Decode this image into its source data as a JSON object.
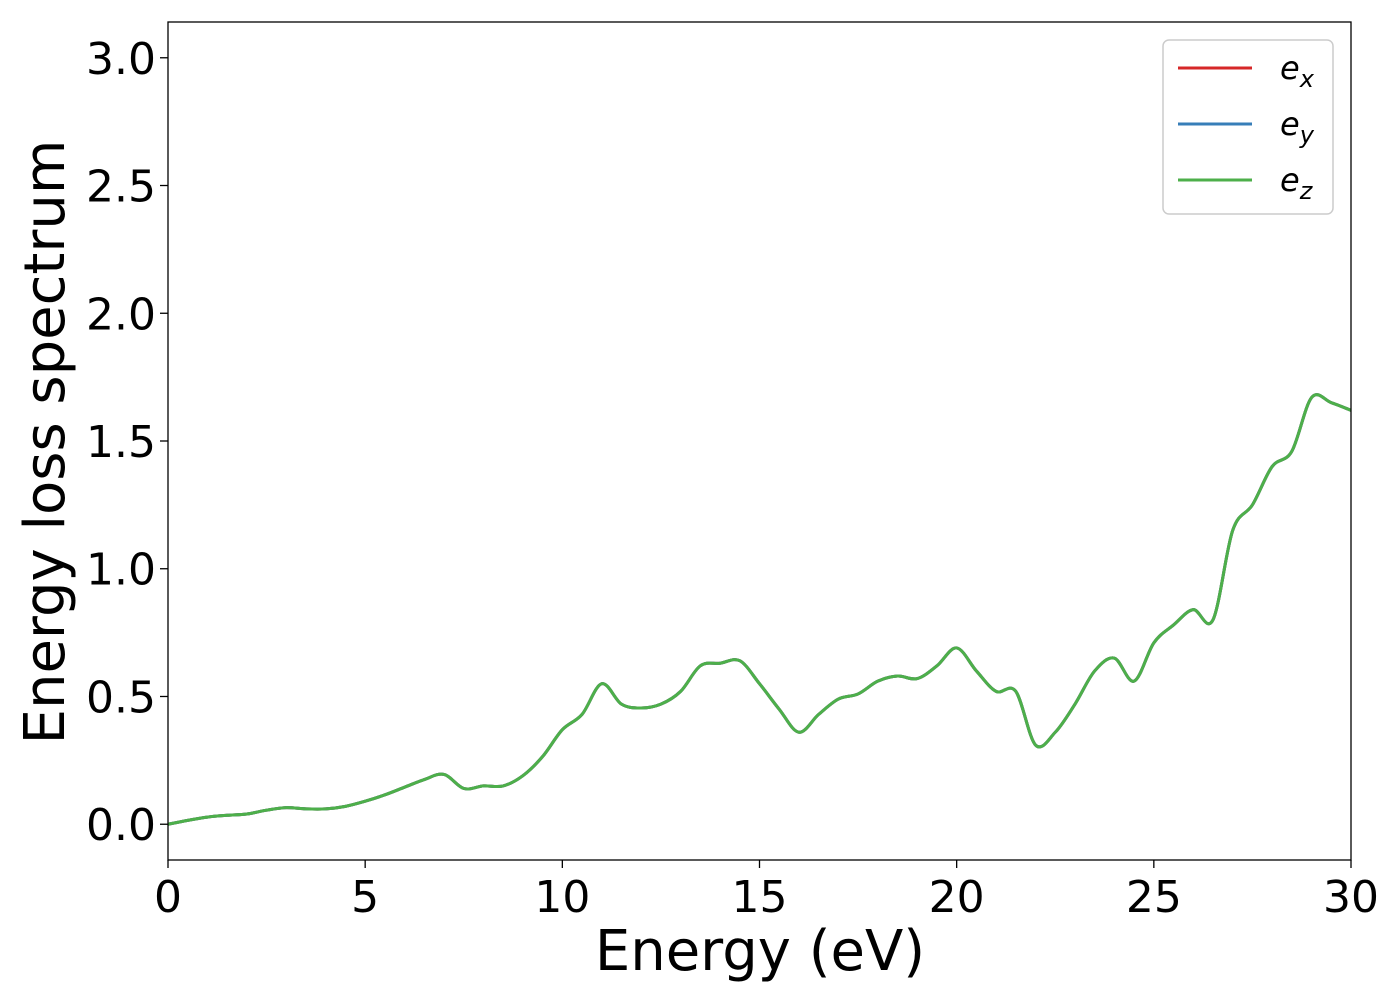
{
  "chart_data": {
    "type": "line",
    "xlabel": "Energy (eV)",
    "ylabel": "Energy loss spectrum",
    "xlim": [
      0,
      30
    ],
    "ylim": [
      -0.14,
      3.14
    ],
    "xticks": [
      "0",
      "5",
      "10",
      "15",
      "20",
      "25",
      "30"
    ],
    "yticks": [
      "0.0",
      "0.5",
      "1.0",
      "1.5",
      "2.0",
      "2.5",
      "3.0"
    ],
    "grid": false,
    "legend_position": "top-right",
    "series": [
      {
        "name": "e",
        "subscript": "x",
        "color": "#d62728",
        "x": [
          0,
          0.5,
          1,
          1.5,
          2,
          2.5,
          3,
          3.5,
          4,
          4.5,
          5,
          5.5,
          6,
          6.5,
          7,
          7.5,
          8,
          8.5,
          9,
          9.5,
          10,
          10.5,
          11,
          11.5,
          12,
          12.5,
          13,
          13.5,
          14,
          14.5,
          15,
          15.5,
          16,
          16.5,
          17,
          17.5,
          18,
          18.5,
          19,
          19.5,
          20,
          20.5,
          21,
          21.5,
          22,
          22.5,
          23,
          23.5,
          24,
          24.5,
          25,
          25.5,
          26,
          26.5,
          27,
          27.5,
          28,
          28.5,
          29,
          29.5,
          30
        ],
        "y": [
          0.0,
          0.015,
          0.028,
          0.035,
          0.04,
          0.055,
          0.065,
          0.06,
          0.06,
          0.07,
          0.09,
          0.115,
          0.145,
          0.175,
          0.195,
          0.14,
          0.15,
          0.15,
          0.19,
          0.265,
          0.37,
          0.43,
          0.55,
          0.47,
          0.455,
          0.47,
          0.52,
          0.62,
          0.63,
          0.64,
          0.55,
          0.45,
          0.36,
          0.43,
          0.49,
          0.51,
          0.56,
          0.58,
          0.57,
          0.62,
          0.69,
          0.6,
          0.52,
          0.52,
          0.31,
          0.36,
          0.47,
          0.6,
          0.65,
          0.56,
          0.71,
          0.78,
          0.84,
          0.8,
          1.15,
          1.25,
          1.4,
          1.46,
          1.67,
          1.65,
          1.62
        ]
      },
      {
        "name": "e",
        "subscript": "y",
        "color": "#377eb8",
        "x": [
          0,
          0.5,
          1,
          1.5,
          2,
          2.5,
          3,
          3.5,
          4,
          4.5,
          5,
          5.5,
          6,
          6.5,
          7,
          7.5,
          8,
          8.5,
          9,
          9.5,
          10,
          10.5,
          11,
          11.5,
          12,
          12.5,
          13,
          13.5,
          14,
          14.5,
          15,
          15.5,
          16,
          16.5,
          17,
          17.5,
          18,
          18.5,
          19,
          19.5,
          20,
          20.5,
          21,
          21.5,
          22,
          22.5,
          23,
          23.5,
          24,
          24.5,
          25,
          25.5,
          26,
          26.5,
          27,
          27.5,
          28,
          28.5,
          29,
          29.5,
          30
        ],
        "y": [
          0.0,
          0.015,
          0.028,
          0.035,
          0.04,
          0.055,
          0.065,
          0.06,
          0.06,
          0.07,
          0.09,
          0.115,
          0.145,
          0.175,
          0.195,
          0.14,
          0.15,
          0.15,
          0.19,
          0.265,
          0.37,
          0.43,
          0.55,
          0.47,
          0.455,
          0.47,
          0.52,
          0.62,
          0.63,
          0.64,
          0.55,
          0.45,
          0.36,
          0.43,
          0.49,
          0.51,
          0.56,
          0.58,
          0.57,
          0.62,
          0.69,
          0.6,
          0.52,
          0.52,
          0.31,
          0.36,
          0.47,
          0.6,
          0.65,
          0.56,
          0.71,
          0.78,
          0.84,
          0.8,
          1.15,
          1.25,
          1.4,
          1.46,
          1.67,
          1.65,
          1.62
        ]
      },
      {
        "name": "e",
        "subscript": "z",
        "color": "#4daf4a",
        "x": [
          0,
          0.5,
          1,
          1.5,
          2,
          2.5,
          3,
          3.5,
          4,
          4.5,
          5,
          5.5,
          6,
          6.5,
          7,
          7.5,
          8,
          8.5,
          9,
          9.5,
          10,
          10.5,
          11,
          11.5,
          12,
          12.5,
          13,
          13.5,
          14,
          14.5,
          15,
          15.5,
          16,
          16.5,
          17,
          17.5,
          18,
          18.5,
          19,
          19.5,
          20,
          20.5,
          21,
          21.5,
          22,
          22.5,
          23,
          23.5,
          24,
          24.5,
          25,
          25.5,
          26,
          26.5,
          27,
          27.5,
          28,
          28.5,
          29,
          29.5,
          30
        ],
        "y": [
          0.0,
          0.015,
          0.028,
          0.035,
          0.04,
          0.055,
          0.065,
          0.06,
          0.06,
          0.07,
          0.09,
          0.115,
          0.145,
          0.175,
          0.195,
          0.14,
          0.15,
          0.15,
          0.19,
          0.265,
          0.37,
          0.43,
          0.55,
          0.47,
          0.455,
          0.47,
          0.52,
          0.62,
          0.63,
          0.64,
          0.55,
          0.45,
          0.36,
          0.43,
          0.49,
          0.51,
          0.56,
          0.58,
          0.57,
          0.62,
          0.69,
          0.6,
          0.52,
          0.52,
          0.31,
          0.36,
          0.47,
          0.6,
          0.65,
          0.56,
          0.71,
          0.78,
          0.84,
          0.8,
          1.15,
          1.25,
          1.4,
          1.46,
          1.67,
          1.65,
          1.62
        ]
      }
    ]
  }
}
